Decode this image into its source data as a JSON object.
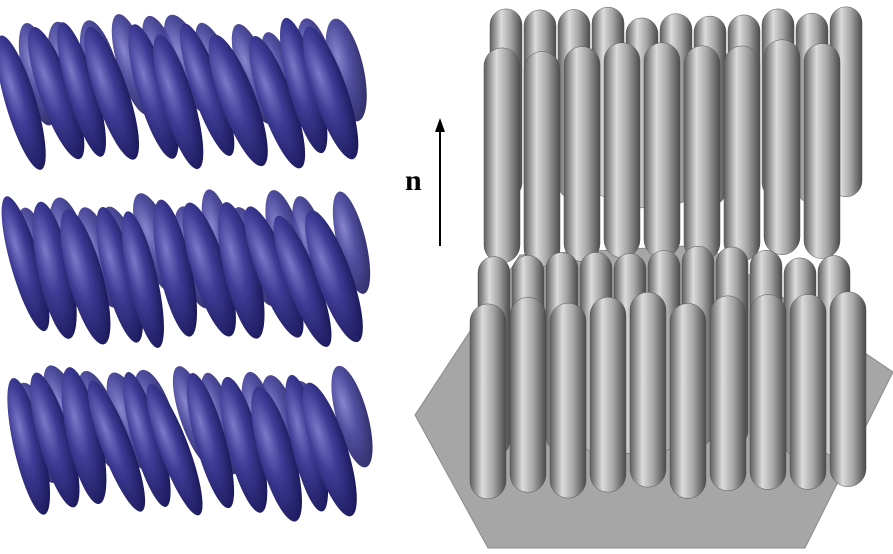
{
  "labels": {
    "director": "n"
  }
}
